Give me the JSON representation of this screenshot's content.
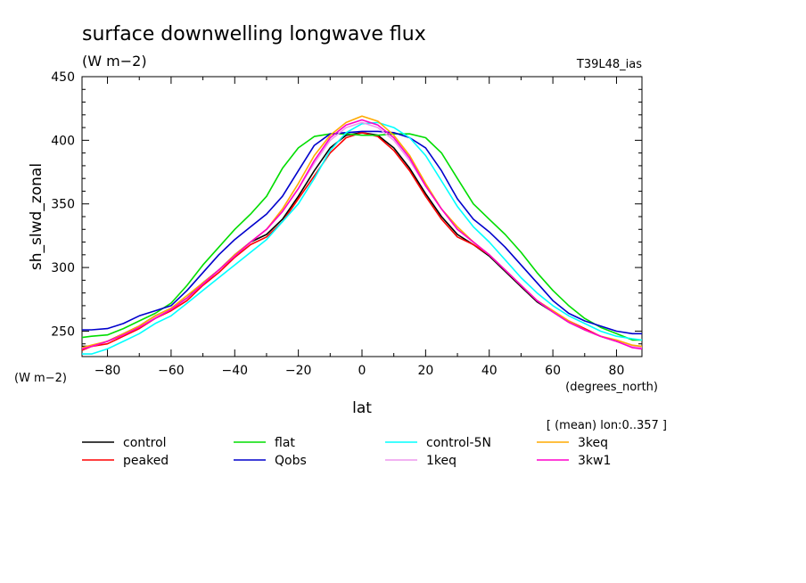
{
  "title": "surface downwelling longwave flux",
  "units": "(W m−2)",
  "run": "T39L48_ias",
  "ylabel": "sh_slwd_zonal",
  "y_units": "(W m−2)",
  "x_units": "(degrees_north)",
  "xlabel": "lat",
  "note": "[ (mean) lon:0..357 ]",
  "chart_data": {
    "type": "line",
    "xlim": [
      -88,
      88
    ],
    "ylim": [
      230,
      450
    ],
    "xticks": [
      -80,
      -60,
      -40,
      -20,
      0,
      20,
      40,
      60,
      80
    ],
    "yticks": [
      250,
      300,
      350,
      400,
      450
    ],
    "x": [
      -88,
      -85,
      -80,
      -75,
      -70,
      -65,
      -60,
      -55,
      -50,
      -45,
      -40,
      -35,
      -30,
      -25,
      -20,
      -15,
      -10,
      -5,
      0,
      5,
      10,
      15,
      20,
      25,
      30,
      35,
      40,
      45,
      50,
      55,
      60,
      65,
      70,
      75,
      80,
      85,
      88
    ],
    "series": [
      {
        "name": "control",
        "color": "#000000",
        "values": [
          238,
          238,
          242,
          248,
          254,
          262,
          268,
          276,
          288,
          298,
          310,
          320,
          326,
          338,
          356,
          376,
          394,
          404,
          406,
          404,
          394,
          378,
          358,
          340,
          326,
          318,
          309,
          297,
          285,
          273,
          265,
          257,
          251,
          246,
          242,
          238,
          238
        ]
      },
      {
        "name": "peaked",
        "color": "#ff0000",
        "values": [
          235,
          238,
          240,
          246,
          252,
          260,
          266,
          274,
          286,
          296,
          308,
          318,
          324,
          336,
          354,
          372,
          390,
          402,
          406,
          403,
          392,
          376,
          356,
          338,
          324,
          318,
          310,
          298,
          286,
          274,
          266,
          258,
          252,
          246,
          242,
          238,
          238
        ]
      },
      {
        "name": "flat",
        "color": "#00dd00",
        "values": [
          245,
          246,
          247,
          252,
          258,
          264,
          272,
          286,
          302,
          316,
          330,
          342,
          356,
          378,
          394,
          403,
          405,
          405,
          404,
          404,
          405,
          405,
          402,
          390,
          370,
          350,
          338,
          326,
          312,
          296,
          282,
          270,
          260,
          253,
          248,
          243,
          243
        ]
      },
      {
        "name": "Qobs",
        "color": "#0000cc",
        "values": [
          251,
          251,
          252,
          256,
          262,
          266,
          270,
          282,
          296,
          310,
          322,
          332,
          342,
          356,
          376,
          396,
          405,
          406,
          407,
          407,
          406,
          402,
          394,
          376,
          354,
          338,
          328,
          316,
          302,
          288,
          274,
          264,
          258,
          254,
          250,
          248,
          248
        ]
      },
      {
        "name": "control-5N",
        "color": "#00ffff",
        "values": [
          232,
          232,
          236,
          242,
          248,
          256,
          262,
          272,
          282,
          292,
          302,
          312,
          322,
          336,
          350,
          370,
          392,
          406,
          413,
          414,
          410,
          402,
          388,
          368,
          348,
          332,
          320,
          306,
          292,
          280,
          270,
          262,
          256,
          250,
          246,
          244,
          243
        ]
      },
      {
        "name": "1keq",
        "color": "#ee99ee",
        "values": [
          236,
          238,
          242,
          247,
          254,
          261,
          268,
          276,
          287,
          298,
          309,
          320,
          330,
          344,
          362,
          382,
          400,
          410,
          414,
          410,
          400,
          384,
          364,
          346,
          330,
          320,
          310,
          298,
          286,
          274,
          265,
          257,
          251,
          246,
          242,
          238,
          237
        ]
      },
      {
        "name": "3keq",
        "color": "#ffaa00",
        "values": [
          237,
          239,
          242,
          248,
          254,
          262,
          268,
          278,
          288,
          298,
          310,
          320,
          330,
          346,
          366,
          388,
          404,
          414,
          419,
          415,
          404,
          388,
          366,
          346,
          332,
          320,
          310,
          298,
          286,
          274,
          266,
          258,
          251,
          246,
          243,
          239,
          238
        ]
      },
      {
        "name": "3kw1",
        "color": "#ff00cc",
        "values": [
          236,
          238,
          242,
          247,
          253,
          260,
          267,
          276,
          287,
          298,
          309,
          320,
          330,
          344,
          362,
          384,
          402,
          412,
          416,
          412,
          402,
          386,
          364,
          346,
          330,
          320,
          310,
          298,
          286,
          274,
          265,
          257,
          251,
          246,
          242,
          237,
          236
        ]
      }
    ]
  }
}
